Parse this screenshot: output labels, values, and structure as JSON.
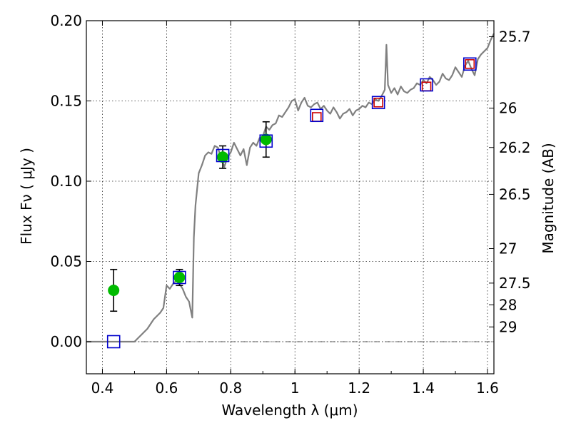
{
  "chart_data": {
    "type": "scatter",
    "title": "",
    "xlabel": "Wavelength  λ (μm)",
    "ylabel": "Flux  Fν  ( μJy )",
    "ylabel_right": "Magnitude (AB)",
    "xlim": [
      0.35,
      1.62
    ],
    "ylim": [
      -0.02,
      0.2
    ],
    "grid": true,
    "x_ticks": [
      0.4,
      0.6,
      0.8,
      1.0,
      1.2,
      1.4,
      1.6
    ],
    "x_tick_labels": [
      "0.4",
      "0.6",
      "0.8",
      "1",
      "1.2",
      "1.4",
      "1.6"
    ],
    "y_ticks": [
      0.0,
      0.05,
      0.1,
      0.15,
      0.2
    ],
    "y_tick_labels": [
      "0.00",
      "0.05",
      "0.10",
      "0.15",
      "0.20"
    ],
    "right_axis_ticks": [
      {
        "label": "25.7",
        "flux": 0.19
      },
      {
        "label": "26",
        "flux": 0.1455
      },
      {
        "label": "26.2",
        "flux": 0.121
      },
      {
        "label": "26.5",
        "flux": 0.0918
      },
      {
        "label": "27",
        "flux": 0.058
      },
      {
        "label": "27.5",
        "flux": 0.0365
      },
      {
        "label": "28",
        "flux": 0.023
      },
      {
        "label": "29",
        "flux": 0.0092
      }
    ],
    "spectrum": {
      "color": "#808080",
      "x": [
        0.35,
        0.44,
        0.5,
        0.52,
        0.54,
        0.55,
        0.56,
        0.57,
        0.58,
        0.59,
        0.6,
        0.61,
        0.62,
        0.63,
        0.64,
        0.65,
        0.66,
        0.67,
        0.675,
        0.68,
        0.685,
        0.69,
        0.7,
        0.71,
        0.72,
        0.73,
        0.74,
        0.75,
        0.76,
        0.77,
        0.78,
        0.79,
        0.8,
        0.81,
        0.82,
        0.83,
        0.84,
        0.85,
        0.86,
        0.87,
        0.88,
        0.89,
        0.9,
        0.91,
        0.92,
        0.93,
        0.94,
        0.95,
        0.96,
        0.97,
        0.98,
        0.99,
        1.0,
        1.01,
        1.02,
        1.03,
        1.04,
        1.05,
        1.06,
        1.07,
        1.08,
        1.09,
        1.1,
        1.11,
        1.12,
        1.13,
        1.14,
        1.15,
        1.16,
        1.17,
        1.18,
        1.19,
        1.2,
        1.21,
        1.22,
        1.23,
        1.24,
        1.25,
        1.26,
        1.27,
        1.28,
        1.285,
        1.29,
        1.3,
        1.31,
        1.32,
        1.33,
        1.34,
        1.35,
        1.36,
        1.37,
        1.38,
        1.39,
        1.4,
        1.41,
        1.42,
        1.43,
        1.44,
        1.45,
        1.46,
        1.47,
        1.48,
        1.49,
        1.5,
        1.51,
        1.52,
        1.53,
        1.54,
        1.55,
        1.56,
        1.57,
        1.58,
        1.59,
        1.6,
        1.61,
        1.62
      ],
      "y": [
        0.0,
        0.0,
        0.0,
        0.004,
        0.008,
        0.011,
        0.014,
        0.016,
        0.018,
        0.021,
        0.035,
        0.033,
        0.036,
        0.038,
        0.036,
        0.033,
        0.028,
        0.025,
        0.02,
        0.015,
        0.065,
        0.085,
        0.105,
        0.11,
        0.116,
        0.118,
        0.117,
        0.122,
        0.121,
        0.114,
        0.109,
        0.115,
        0.118,
        0.124,
        0.12,
        0.116,
        0.12,
        0.11,
        0.121,
        0.124,
        0.122,
        0.127,
        0.128,
        0.134,
        0.132,
        0.135,
        0.136,
        0.141,
        0.14,
        0.143,
        0.146,
        0.15,
        0.151,
        0.144,
        0.149,
        0.152,
        0.147,
        0.146,
        0.148,
        0.149,
        0.145,
        0.147,
        0.144,
        0.142,
        0.146,
        0.143,
        0.139,
        0.142,
        0.143,
        0.145,
        0.141,
        0.144,
        0.145,
        0.147,
        0.146,
        0.149,
        0.148,
        0.151,
        0.15,
        0.153,
        0.157,
        0.185,
        0.16,
        0.155,
        0.158,
        0.154,
        0.159,
        0.156,
        0.155,
        0.157,
        0.158,
        0.161,
        0.16,
        0.163,
        0.161,
        0.165,
        0.163,
        0.16,
        0.162,
        0.167,
        0.164,
        0.163,
        0.166,
        0.171,
        0.168,
        0.165,
        0.172,
        0.175,
        0.17,
        0.166,
        0.176,
        0.179,
        0.181,
        0.183,
        0.188,
        0.192
      ]
    },
    "series": [
      {
        "marker": "circle",
        "color": "#00bb00",
        "x": [
          0.435,
          0.64,
          0.775,
          0.91
        ],
        "y": [
          0.032,
          0.04,
          0.115,
          0.126
        ],
        "err": [
          0.013,
          0.005,
          0.007,
          0.011
        ]
      },
      {
        "marker": "square",
        "color": "#0000cc",
        "x": [
          0.435,
          0.64,
          0.775,
          0.91,
          1.068,
          1.26,
          1.41,
          1.545
        ],
        "y": [
          0.0,
          0.04,
          0.116,
          0.125,
          0.141,
          0.149,
          0.16,
          0.173
        ]
      },
      {
        "marker": "square",
        "color": "#cc0000",
        "x": [
          1.068,
          1.26,
          1.41,
          1.545
        ],
        "y": [
          0.14,
          0.149,
          0.159,
          0.173
        ]
      }
    ]
  }
}
